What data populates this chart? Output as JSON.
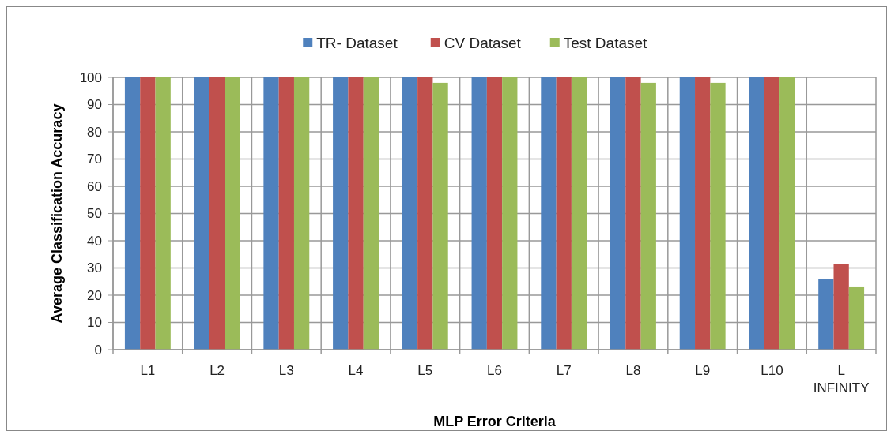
{
  "chart_data": {
    "type": "bar",
    "xlabel": "MLP Error Criteria",
    "ylabel": "Average Classification Accuracy",
    "categories": [
      "L1",
      "L2",
      "L3",
      "L4",
      "L5",
      "L6",
      "L7",
      "L8",
      "L9",
      "L10",
      "L INFINITY"
    ],
    "series": [
      {
        "name": "TR- Dataset",
        "color": "#4f81bd",
        "values": [
          100,
          100,
          100,
          100,
          100,
          100,
          100,
          100,
          100,
          100,
          26
        ]
      },
      {
        "name": "CV Dataset",
        "color": "#c0504d",
        "values": [
          100,
          100,
          100,
          100,
          100,
          100,
          100,
          100,
          100,
          100,
          31.4
        ]
      },
      {
        "name": "Test Dataset",
        "color": "#9bbb59",
        "values": [
          100,
          100,
          100,
          100,
          98,
          100,
          100,
          98,
          98,
          100,
          23.2
        ]
      }
    ],
    "ylim": [
      0,
      100
    ],
    "yticks": [
      0,
      10,
      20,
      30,
      40,
      50,
      60,
      70,
      80,
      90,
      100
    ],
    "grid": true,
    "legend": "top"
  }
}
